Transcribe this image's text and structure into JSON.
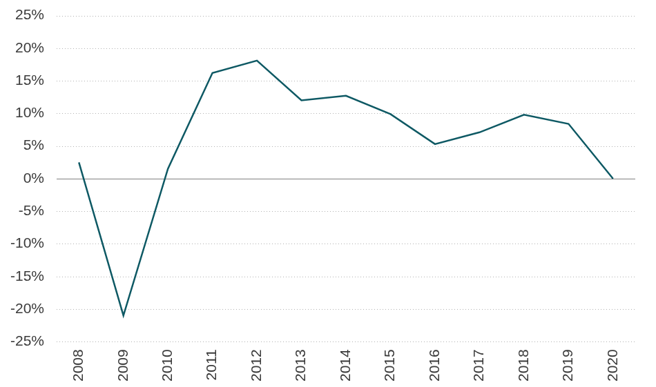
{
  "chart_data": {
    "type": "line",
    "categories": [
      "2008",
      "2009",
      "2010",
      "2011",
      "2012",
      "2013",
      "2014",
      "2015",
      "2016",
      "2017",
      "2018",
      "2019",
      "2020"
    ],
    "values": [
      2.5,
      -21,
      1.5,
      16.2,
      18.1,
      12,
      12.7,
      9.9,
      5.3,
      7.1,
      9.8,
      8.4,
      0
    ],
    "color": "#0e5964",
    "ylim": [
      -25,
      25
    ],
    "yticks": [
      {
        "value": -25,
        "label": "-25%"
      },
      {
        "value": -20,
        "label": "-20%"
      },
      {
        "value": -15,
        "label": "-15%"
      },
      {
        "value": -10,
        "label": "-10%"
      },
      {
        "value": -5,
        "label": "-5%"
      },
      {
        "value": 0,
        "label": "0%"
      },
      {
        "value": 5,
        "label": "5%"
      },
      {
        "value": 10,
        "label": "10%"
      },
      {
        "value": 15,
        "label": "15%"
      },
      {
        "value": 20,
        "label": "20%"
      },
      {
        "value": 25,
        "label": "25%"
      }
    ],
    "grid": true
  }
}
